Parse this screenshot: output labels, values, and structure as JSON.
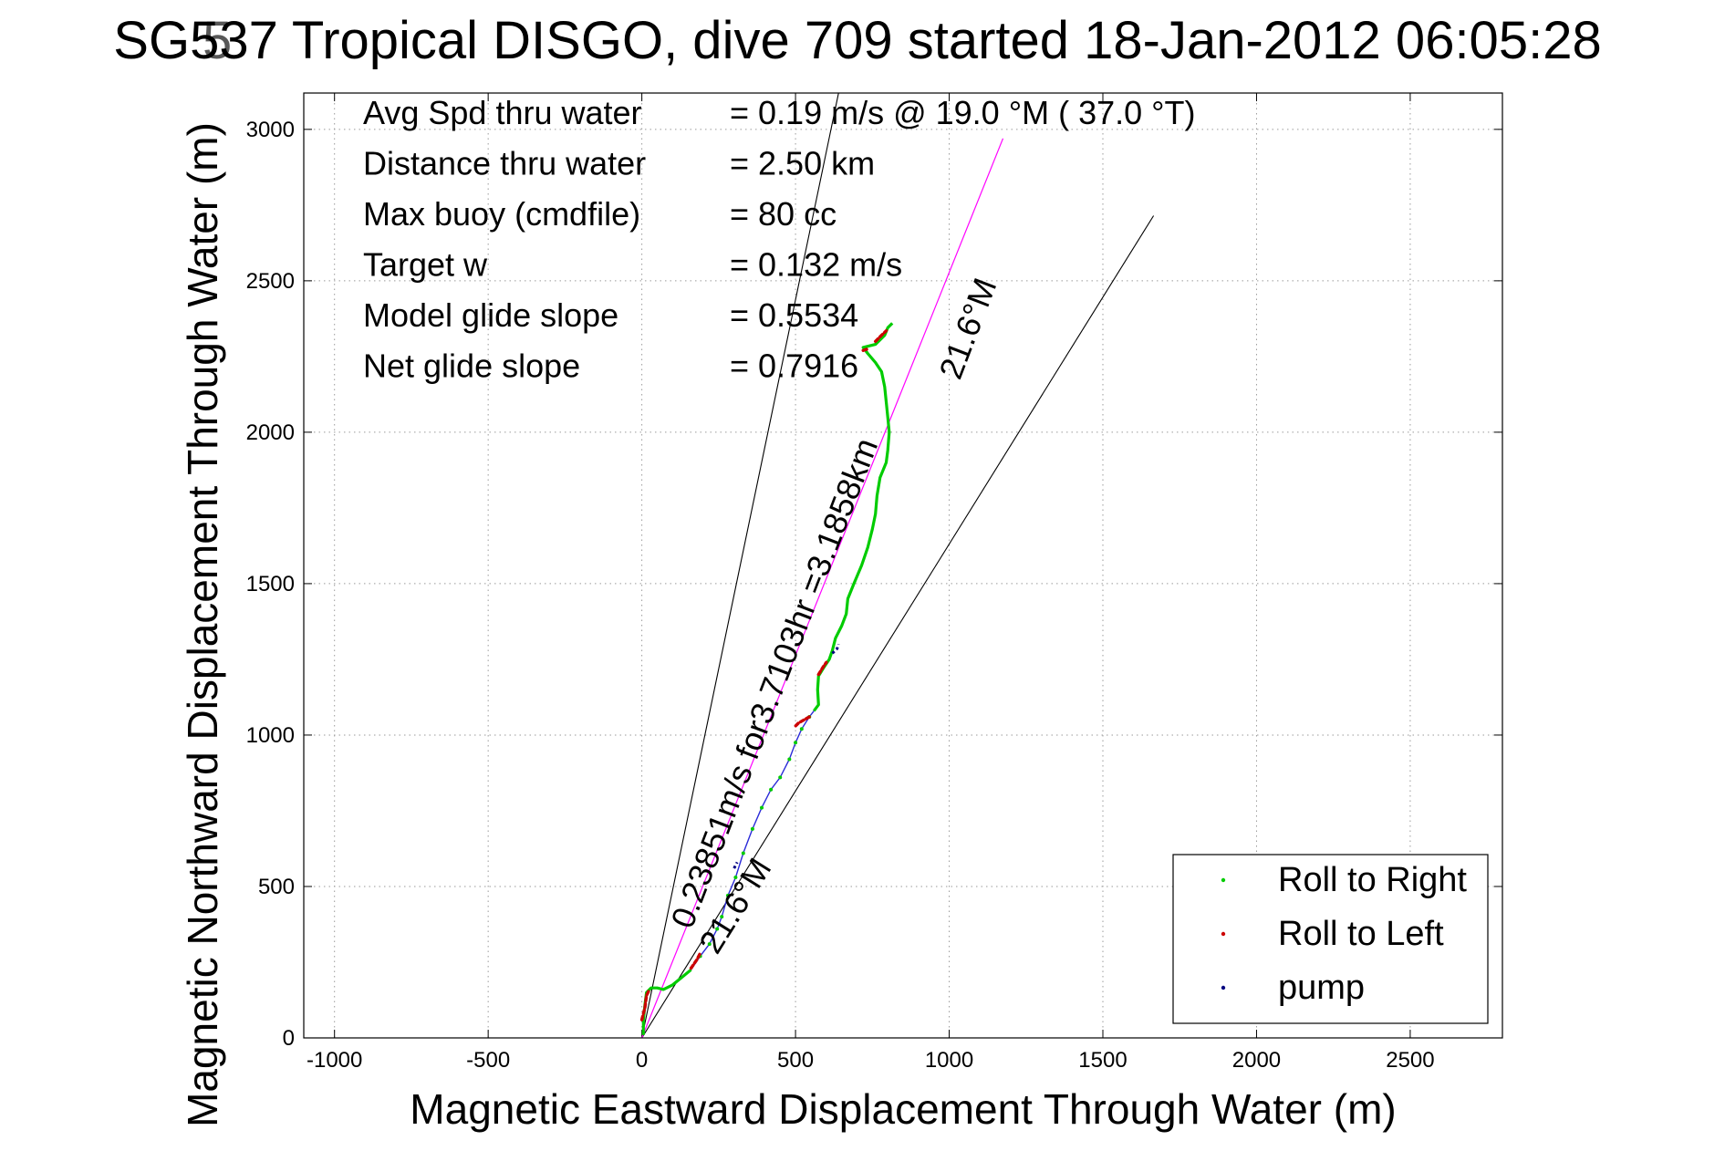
{
  "chart_data": {
    "type": "line",
    "title": "SG537 Tropical DISGO, dive 709 started 18-Jan-2012 06:05:28",
    "title_overlap_char": "5",
    "xlabel": "Magnetic Eastward Displacement Through Water (m)",
    "ylabel": "Magnetic Northward Displacement Through Water (m)",
    "xlim": [
      -1100,
      2800
    ],
    "ylim": [
      0,
      3120
    ],
    "x_ticks": [
      -1000,
      -500,
      0,
      500,
      1000,
      1500,
      2000,
      2500
    ],
    "x_tick_labels": [
      "-1000",
      "-500",
      "0",
      "500",
      "1000",
      "1500",
      "2000",
      "2500"
    ],
    "y_ticks": [
      0,
      500,
      1000,
      1500,
      2000,
      2500,
      3000
    ],
    "y_tick_labels": [
      "0",
      "500",
      "1000",
      "1500",
      "2000",
      "2500",
      "3000"
    ],
    "grid": true,
    "legend_position": "bottom-right",
    "info_lines": [
      {
        "label": "Avg Spd thru water",
        "value": "=  0.19 m/s @  19.0 °M ( 37.0 °T)"
      },
      {
        "label": "Distance thru water",
        "value": "=  2.50 km"
      },
      {
        "label": "Max buoy (cmdfile)",
        "value": "= 80 cc"
      },
      {
        "label": "Target w",
        "value": "= 0.132 m/s"
      },
      {
        "label": "Model glide slope",
        "value": "= 0.5534"
      },
      {
        "label": "Net glide slope",
        "value": "= 0.7916"
      }
    ],
    "annotations": {
      "vector_label": "0.23851m/s for3.7103hr =3.1858km",
      "heading_upper": "21.6°M",
      "heading_lower": "21.6°M"
    },
    "reference_lines": [
      {
        "name": "upper-bound-line",
        "color": "#000000",
        "points": [
          [
            0,
            0
          ],
          [
            640,
            3120
          ]
        ]
      },
      {
        "name": "lower-bound-line",
        "color": "#000000",
        "points": [
          [
            0,
            0
          ],
          [
            1665,
            2715
          ]
        ]
      },
      {
        "name": "heading-line",
        "color": "#ff00ff",
        "points": [
          [
            0,
            0
          ],
          [
            1175,
            2970
          ]
        ]
      }
    ],
    "series": [
      {
        "name": "Roll to Right",
        "color": "#00cc00",
        "track": [
          [
            5,
            10
          ],
          [
            5,
            60
          ],
          [
            10,
            110
          ],
          [
            15,
            150
          ],
          [
            30,
            165
          ],
          [
            50,
            165
          ],
          [
            70,
            160
          ],
          [
            100,
            175
          ],
          [
            130,
            200
          ],
          [
            160,
            225
          ],
          [
            190,
            270
          ],
          [
            220,
            310
          ],
          [
            245,
            360
          ],
          [
            260,
            400
          ],
          [
            280,
            470
          ],
          [
            305,
            530
          ],
          [
            330,
            610
          ],
          [
            360,
            690
          ],
          [
            390,
            760
          ],
          [
            420,
            820
          ],
          [
            450,
            860
          ],
          [
            480,
            920
          ],
          [
            500,
            975
          ],
          [
            520,
            1020
          ],
          [
            545,
            1060
          ],
          [
            560,
            1080
          ],
          [
            575,
            1100
          ],
          [
            572,
            1150
          ],
          [
            575,
            1195
          ],
          [
            590,
            1220
          ],
          [
            610,
            1250
          ],
          [
            620,
            1280
          ],
          [
            630,
            1320
          ],
          [
            650,
            1360
          ],
          [
            665,
            1400
          ],
          [
            670,
            1450
          ],
          [
            690,
            1500
          ],
          [
            715,
            1560
          ],
          [
            735,
            1620
          ],
          [
            750,
            1680
          ],
          [
            760,
            1730
          ],
          [
            765,
            1790
          ],
          [
            775,
            1850
          ],
          [
            795,
            1900
          ],
          [
            800,
            1940
          ],
          [
            805,
            2000
          ],
          [
            800,
            2050
          ],
          [
            795,
            2100
          ],
          [
            790,
            2150
          ],
          [
            780,
            2200
          ],
          [
            760,
            2230
          ],
          [
            735,
            2260
          ],
          [
            720,
            2280
          ],
          [
            760,
            2290
          ],
          [
            790,
            2320
          ],
          [
            800,
            2345
          ],
          [
            815,
            2360
          ]
        ]
      },
      {
        "name": "Roll to Left",
        "color": "#cc0000"
      },
      {
        "name": "pump",
        "color": "#000080"
      }
    ],
    "roll_left_segments": [
      [
        [
          0,
          60
        ],
        [
          10,
          100
        ],
        [
          15,
          140
        ],
        [
          25,
          160
        ]
      ],
      [
        [
          160,
          230
        ],
        [
          180,
          260
        ],
        [
          190,
          280
        ]
      ],
      [
        [
          545,
          1060
        ],
        [
          510,
          1040
        ],
        [
          500,
          1030
        ]
      ],
      [
        [
          575,
          1200
        ],
        [
          590,
          1225
        ],
        [
          600,
          1240
        ]
      ],
      [
        [
          760,
          2300
        ],
        [
          780,
          2320
        ],
        [
          795,
          2335
        ]
      ],
      [
        [
          720,
          2270
        ],
        [
          735,
          2275
        ]
      ]
    ],
    "pump_segments": [
      [
        [
          620,
          1270
        ],
        [
          635,
          1285
        ],
        [
          640,
          1300
        ]
      ],
      [
        [
          300,
          560
        ],
        [
          310,
          580
        ]
      ]
    ]
  }
}
